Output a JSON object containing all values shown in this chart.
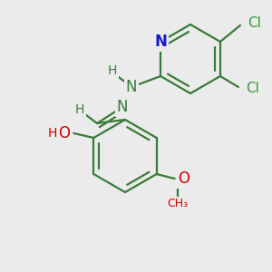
{
  "background_color": "#ebebeb",
  "bond_color": "#3a7a3a",
  "bond_width": 1.6,
  "dbo": 0.018,
  "figsize": [
    3.0,
    3.0
  ],
  "dpi": 100,
  "xlim": [
    0,
    300
  ],
  "ylim": [
    0,
    300
  ]
}
